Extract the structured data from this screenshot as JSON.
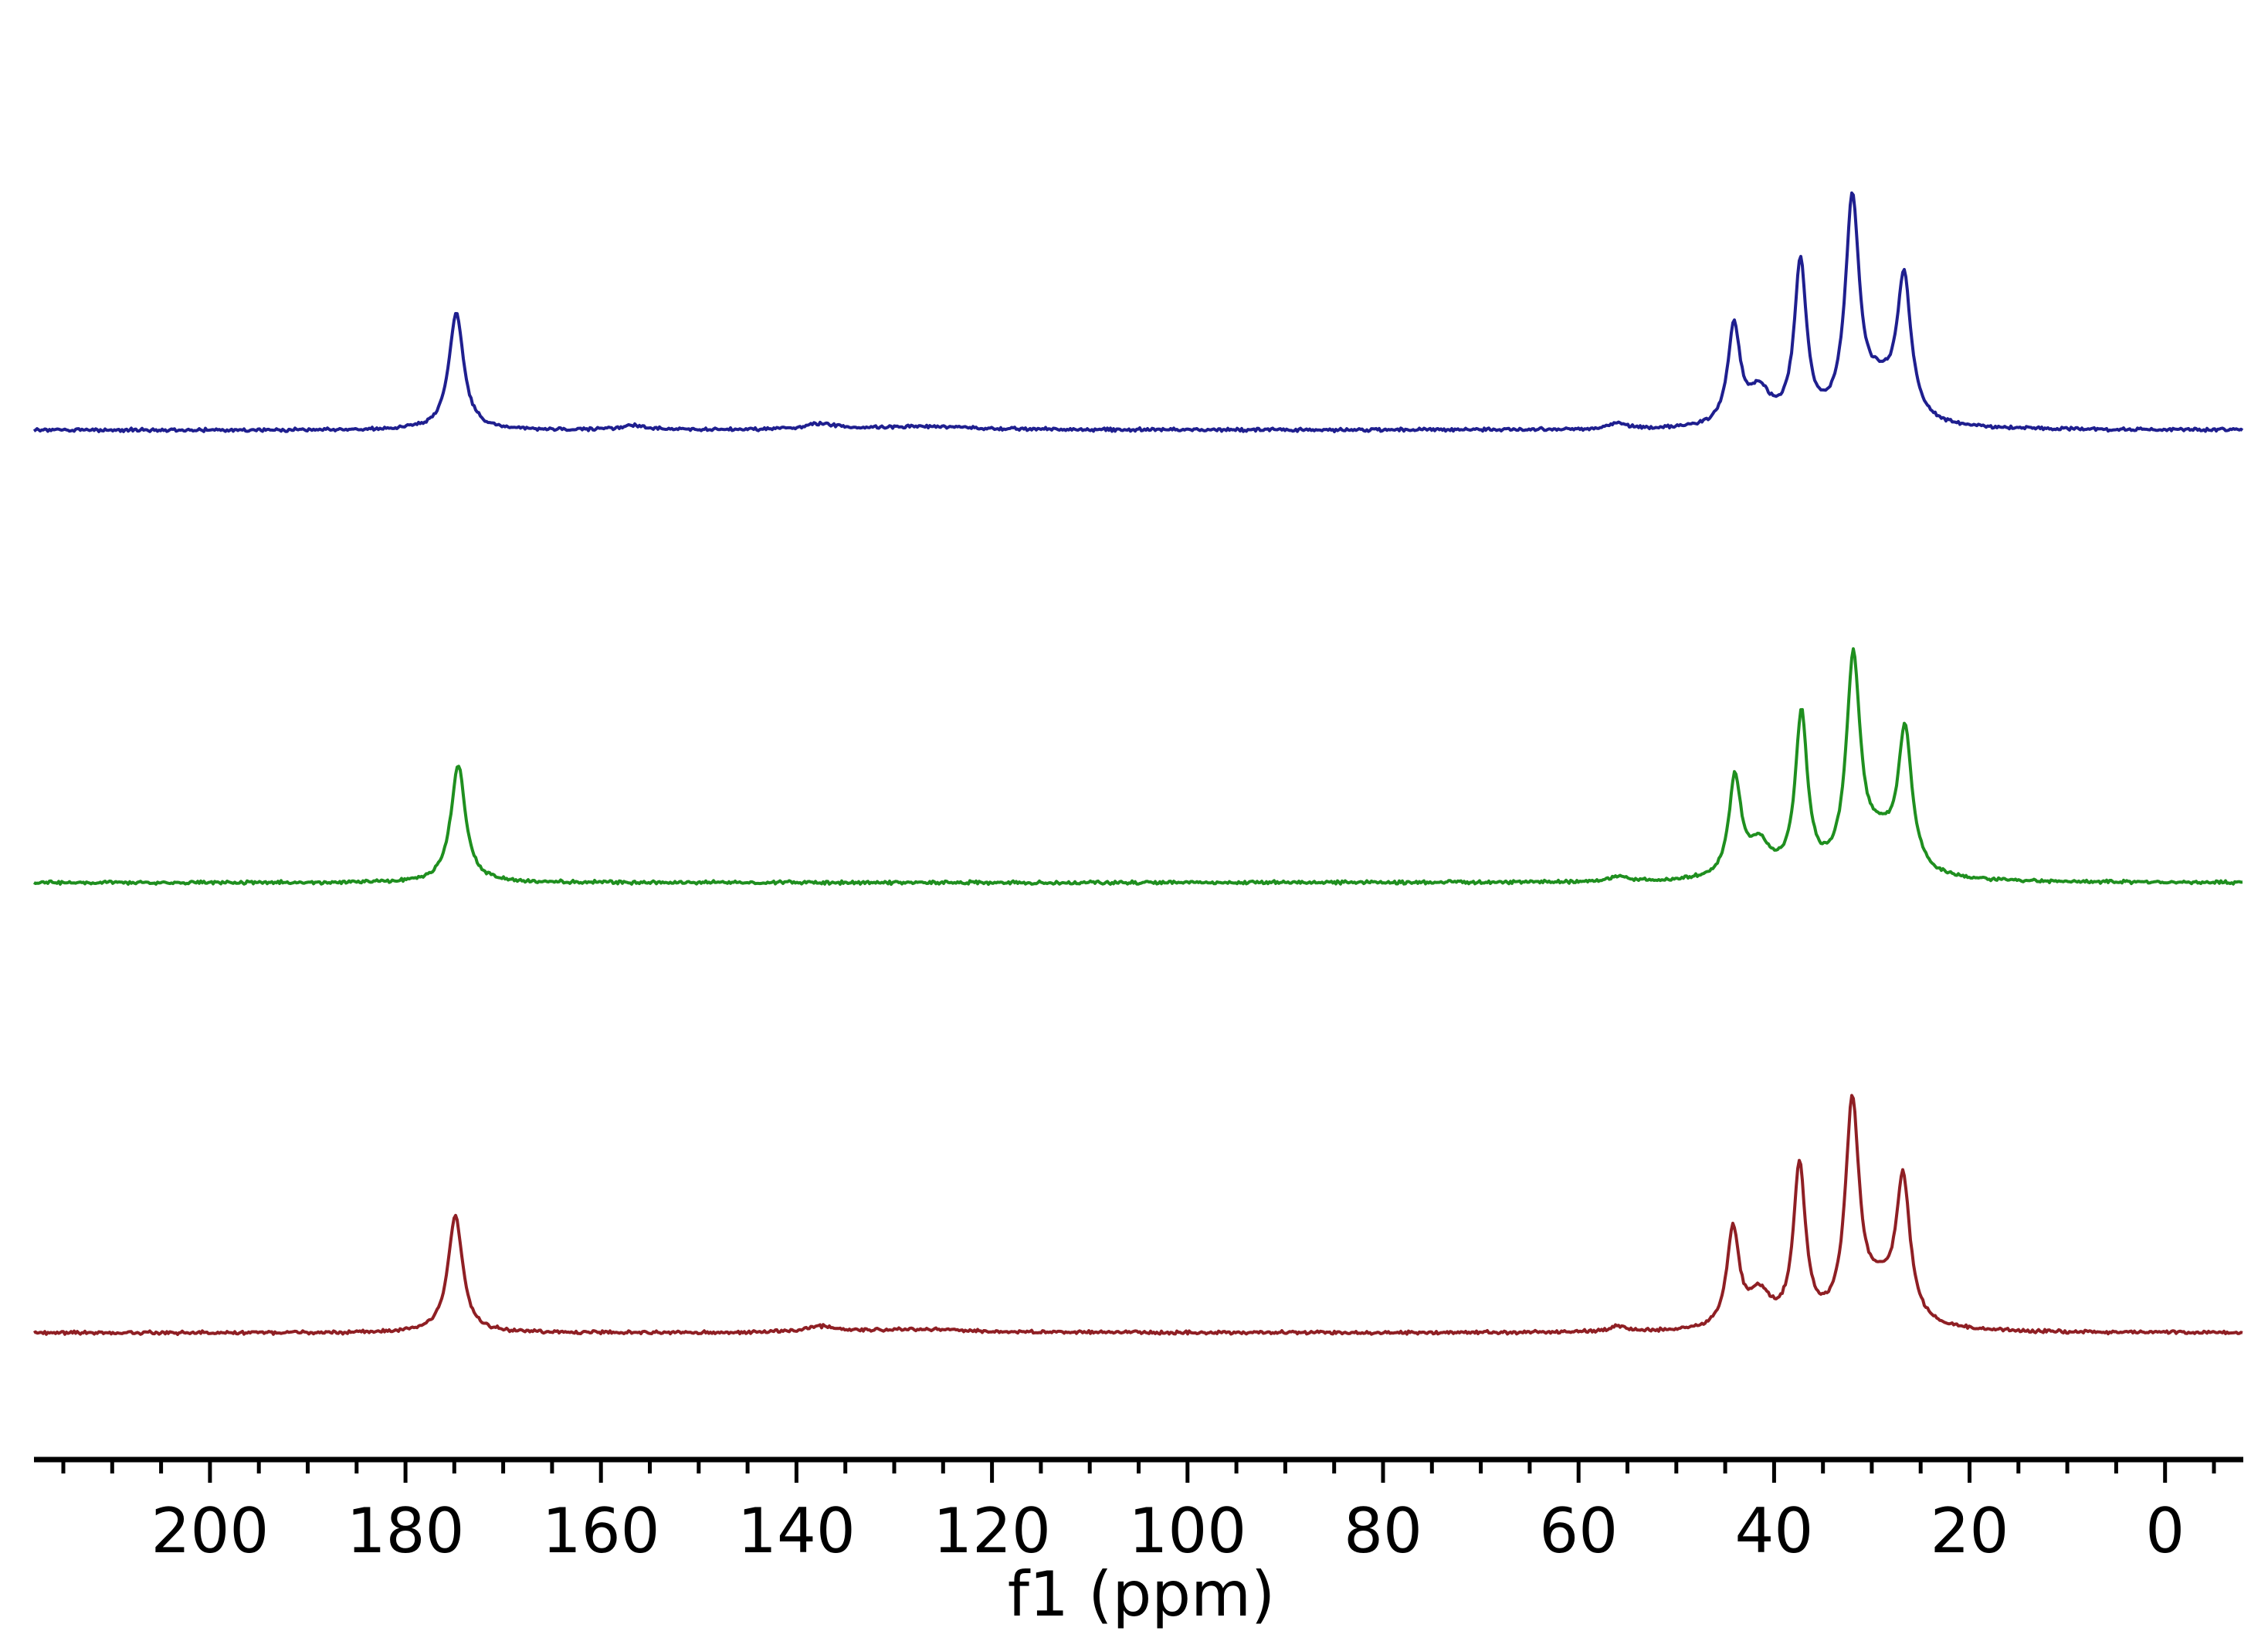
{
  "chart_data": {
    "type": "line",
    "subtype": "stacked NMR spectra",
    "xlabel": "f1 (ppm)",
    "xlim": [
      218,
      -8
    ],
    "x_reversed": true,
    "xticks": [
      200,
      180,
      160,
      140,
      120,
      100,
      80,
      60,
      40,
      20,
      0
    ],
    "xtick_labels": [
      "200",
      "180",
      "160",
      "140",
      "120",
      "100",
      "80",
      "60",
      "40",
      "20",
      "0"
    ],
    "minor_tick_step": 5,
    "grid": false,
    "legend": "none",
    "series": [
      {
        "color": "#1f1f8f",
        "peaks": [
          {
            "x": 174.8,
            "height": 1.0,
            "width": 0.9
          },
          {
            "x": 44.1,
            "height": 0.84,
            "width": 0.75
          },
          {
            "x": 41.5,
            "height": 0.28,
            "width": 1.4
          },
          {
            "x": 37.3,
            "height": 1.37,
            "width": 0.75
          },
          {
            "x": 32.0,
            "height": 1.85,
            "width": 0.85
          },
          {
            "x": 29.2,
            "height": 0.3,
            "width": 2.2
          },
          {
            "x": 26.7,
            "height": 1.18,
            "width": 0.85
          },
          {
            "x": 156.5,
            "height": 0.035,
            "width": 1.5
          },
          {
            "x": 137.5,
            "height": 0.05,
            "width": 2.0
          },
          {
            "x": 127.0,
            "height": 0.03,
            "width": 6.0
          },
          {
            "x": 56.0,
            "height": 0.05,
            "width": 1.0
          }
        ]
      },
      {
        "color": "#1f8f1f",
        "peaks": [
          {
            "x": 174.6,
            "height": 1.0,
            "width": 0.9
          },
          {
            "x": 44.0,
            "height": 0.84,
            "width": 0.75
          },
          {
            "x": 41.5,
            "height": 0.28,
            "width": 1.4
          },
          {
            "x": 37.2,
            "height": 1.37,
            "width": 0.75
          },
          {
            "x": 31.9,
            "height": 1.8,
            "width": 0.85
          },
          {
            "x": 29.2,
            "height": 0.3,
            "width": 2.2
          },
          {
            "x": 26.6,
            "height": 1.18,
            "width": 0.85
          },
          {
            "x": 56.0,
            "height": 0.05,
            "width": 1.0
          }
        ]
      },
      {
        "color": "#8f1f24",
        "peaks": [
          {
            "x": 174.9,
            "height": 1.0,
            "width": 0.9
          },
          {
            "x": 44.2,
            "height": 0.84,
            "width": 0.75
          },
          {
            "x": 41.5,
            "height": 0.28,
            "width": 1.4
          },
          {
            "x": 37.4,
            "height": 1.37,
            "width": 0.75
          },
          {
            "x": 32.0,
            "height": 1.85,
            "width": 0.85
          },
          {
            "x": 29.2,
            "height": 0.3,
            "width": 2.2
          },
          {
            "x": 26.8,
            "height": 1.18,
            "width": 0.85
          },
          {
            "x": 137.5,
            "height": 0.05,
            "width": 2.0
          },
          {
            "x": 127.0,
            "height": 0.03,
            "width": 6.0
          },
          {
            "x": 56.0,
            "height": 0.05,
            "width": 1.0
          }
        ]
      }
    ]
  }
}
